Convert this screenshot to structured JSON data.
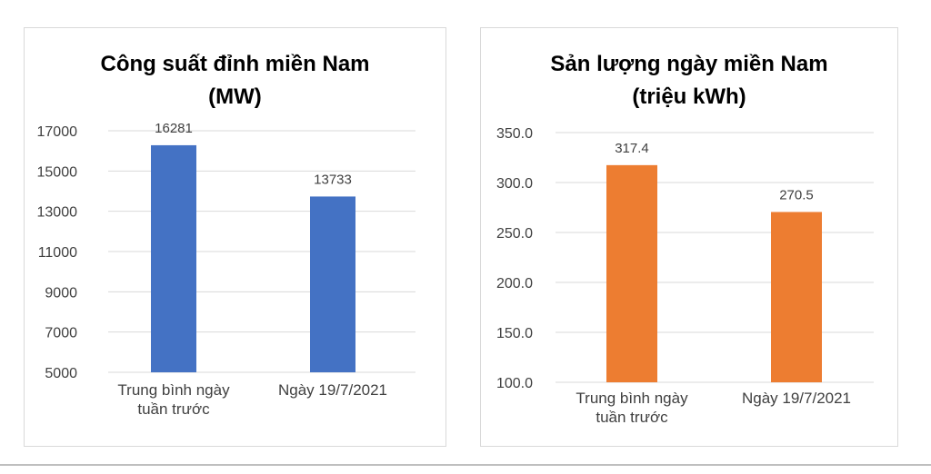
{
  "charts": [
    {
      "title_line1": "Công suất đỉnh miền Nam",
      "title_line2": "(MW)"
    },
    {
      "title_line1": "Sản lượng ngày miền Nam",
      "title_line2": "(triệu kWh)"
    }
  ],
  "chart_data": [
    {
      "type": "bar",
      "title": "Công suất đỉnh miền Nam (MW)",
      "categories": [
        [
          "Trung bình ngày",
          "tuần trước"
        ],
        [
          "Ngày 19/7/2021"
        ]
      ],
      "values": [
        16281,
        13733
      ],
      "data_labels": [
        "16281",
        "13733"
      ],
      "yticks": [
        "5000",
        "7000",
        "9000",
        "11000",
        "13000",
        "15000",
        "17000"
      ],
      "ylim": [
        5000,
        17000
      ],
      "grid": true,
      "bar_color": "#4472C4"
    },
    {
      "type": "bar",
      "title": "Sản lượng ngày miền Nam (triệu kWh)",
      "categories": [
        [
          "Trung bình ngày",
          "tuần trước"
        ],
        [
          "Ngày 19/7/2021"
        ]
      ],
      "values": [
        317.4,
        270.5
      ],
      "data_labels": [
        "317.4",
        "270.5"
      ],
      "yticks": [
        "100.0",
        "150.0",
        "200.0",
        "250.0",
        "300.0",
        "350.0"
      ],
      "ylim": [
        100,
        350
      ],
      "grid": true,
      "bar_color": "#ED7D31"
    }
  ]
}
